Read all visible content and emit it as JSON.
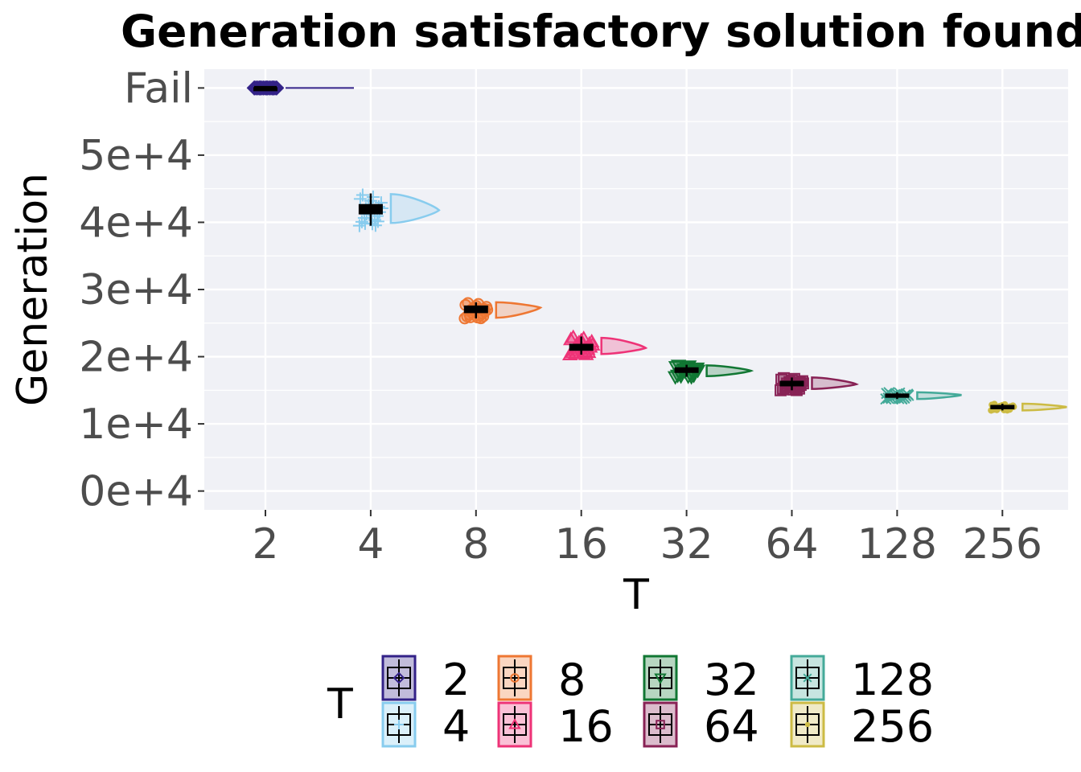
{
  "chart_data": {
    "type": "raincloud",
    "title": "Generation satisfactory solution found",
    "xlabel": "T",
    "ylabel": "Generation",
    "categories": [
      "2",
      "4",
      "8",
      "16",
      "32",
      "64",
      "128",
      "256"
    ],
    "y_ticks": [
      {
        "value": 0,
        "label": "0e+4"
      },
      {
        "value": 10000,
        "label": "1e+4"
      },
      {
        "value": 20000,
        "label": "2e+4"
      },
      {
        "value": 30000,
        "label": "3e+4"
      },
      {
        "value": 40000,
        "label": "4e+4"
      },
      {
        "value": 50000,
        "label": "5e+4"
      },
      {
        "value": 60000,
        "label": "Fail"
      }
    ],
    "ylim": [
      -2800,
      62800
    ],
    "grid": true,
    "series": [
      {
        "name": "2",
        "color": "#332288",
        "shape": "diamond",
        "median": 60000,
        "q1": 60000,
        "q3": 60000,
        "min": 60000,
        "max": 60000,
        "cloud_lo": 60000,
        "cloud_hi": 60000,
        "cloud_peak": 60000
      },
      {
        "name": "4",
        "color": "#88ccee",
        "shape": "plus",
        "median": 42000,
        "q1": 41300,
        "q3": 42600,
        "min": 39500,
        "max": 44300,
        "cloud_lo": 39900,
        "cloud_hi": 44200,
        "cloud_peak": 41800
      },
      {
        "name": "8",
        "color": "#ee7733",
        "shape": "circle",
        "median": 27100,
        "q1": 26600,
        "q3": 27500,
        "min": 25700,
        "max": 28100,
        "cloud_lo": 25800,
        "cloud_hi": 28100,
        "cloud_peak": 27300
      },
      {
        "name": "16",
        "color": "#ee3377",
        "shape": "triangle",
        "median": 21400,
        "q1": 21000,
        "q3": 21800,
        "min": 20300,
        "max": 23000,
        "cloud_lo": 20400,
        "cloud_hi": 22800,
        "cloud_peak": 21300
      },
      {
        "name": "32",
        "color": "#117733",
        "shape": "triangle-down",
        "median": 18000,
        "q1": 17700,
        "q3": 18300,
        "min": 17000,
        "max": 18800,
        "cloud_lo": 17100,
        "cloud_hi": 18700,
        "cloud_peak": 17900
      },
      {
        "name": "64",
        "color": "#882255",
        "shape": "square",
        "median": 16000,
        "q1": 15700,
        "q3": 16300,
        "min": 15000,
        "max": 16900,
        "cloud_lo": 15200,
        "cloud_hi": 16900,
        "cloud_peak": 15900
      },
      {
        "name": "128",
        "color": "#44aa99",
        "shape": "x",
        "median": 14200,
        "q1": 14000,
        "q3": 14400,
        "min": 13700,
        "max": 14700,
        "cloud_lo": 13700,
        "cloud_hi": 14700,
        "cloud_peak": 14300
      },
      {
        "name": "256",
        "color": "#ccbb44",
        "shape": "dot",
        "median": 12500,
        "q1": 12300,
        "q3": 12700,
        "min": 12000,
        "max": 13000,
        "cloud_lo": 12000,
        "cloud_hi": 13000,
        "cloud_peak": 12500
      }
    ],
    "legend": {
      "title": "T",
      "placement": "bottom",
      "entries": [
        "2",
        "8",
        "32",
        "128",
        "4",
        "16",
        "64",
        "256"
      ]
    }
  }
}
